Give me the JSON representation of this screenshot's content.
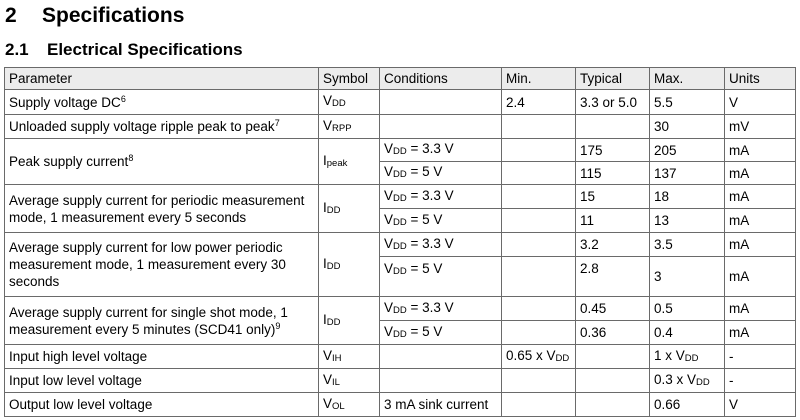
{
  "section": {
    "number": "2",
    "title": "Specifications"
  },
  "subsection": {
    "number": "2.1",
    "title": "Electrical Specifications"
  },
  "headers": [
    "Parameter",
    "Symbol",
    "Conditions",
    "Min.",
    "Typical",
    "Max.",
    "Units"
  ],
  "rows": {
    "r1": {
      "param": "Supply voltage DC",
      "sup": "6",
      "sym": "V",
      "symsub": "DD",
      "min": "2.4",
      "typ": "3.3 or 5.0",
      "max": "5.5",
      "unit": "V"
    },
    "r2": {
      "param": "Unloaded supply voltage ripple peak to peak",
      "sup": "7",
      "sym": "V",
      "symsub": "RPP",
      "max": "30",
      "unit": "mV"
    },
    "r3": {
      "param": "Peak supply current",
      "sup": "8",
      "sym": "I",
      "symsub": "peak",
      "a": {
        "cond": "V",
        "condsub": "DD",
        "condrest": " = 3.3 V",
        "typ": "175",
        "max": "205",
        "unit": "mA"
      },
      "b": {
        "cond": "V",
        "condsub": "DD",
        "condrest": " = 5 V",
        "typ": "115",
        "max": "137",
        "unit": "mA"
      }
    },
    "r4": {
      "param": "Average supply current for periodic measurement mode, 1 measurement every 5 seconds",
      "sym": "I",
      "symsub": "DD",
      "a": {
        "cond": "V",
        "condsub": "DD",
        "condrest": " = 3.3 V",
        "typ": "15",
        "max": "18",
        "unit": "mA"
      },
      "b": {
        "cond": "V",
        "condsub": "DD",
        "condrest": " = 5 V",
        "typ": "11",
        "max": "13",
        "unit": "mA"
      }
    },
    "r5": {
      "param": "Average supply current for low power periodic measurement mode, 1 measurement every 30 seconds",
      "sym": "I",
      "symsub": "DD",
      "a": {
        "cond": "V",
        "condsub": "DD",
        "condrest": " = 3.3 V",
        "typ": "3.2",
        "max": "3.5",
        "unit": "mA"
      },
      "b": {
        "cond": "V",
        "condsub": "DD",
        "condrest": " = 5 V",
        "typ": "2.8",
        "max": "3",
        "unit": "mA"
      }
    },
    "r6": {
      "param": "Average supply current for single shot mode, 1 measurement every 5 minutes (SCD41 only)",
      "sup": "9",
      "sym": "I",
      "symsub": "DD",
      "a": {
        "cond": "V",
        "condsub": "DD",
        "condrest": " = 3.3 V",
        "typ": "0.45",
        "max": "0.5",
        "unit": "mA"
      },
      "b": {
        "cond": "V",
        "condsub": "DD",
        "condrest": " = 5 V",
        "typ": "0.36",
        "max": "0.4",
        "unit": "mA"
      }
    },
    "r7": {
      "param": "Input high level voltage",
      "sym": "V",
      "symsub": "IH",
      "min": "0.65 x V",
      "minsub": "DD",
      "max": "1 x V",
      "maxsub": "DD",
      "unit": "-"
    },
    "r8": {
      "param": "Input low level voltage",
      "sym": "V",
      "symsub": "IL",
      "max": "0.3 x V",
      "maxsub": "DD",
      "unit": "-"
    },
    "r9": {
      "param": "Output low level voltage",
      "sym": "V",
      "symsub": "OL",
      "cond": "3 mA sink current",
      "max": "0.66",
      "unit": "V"
    }
  }
}
